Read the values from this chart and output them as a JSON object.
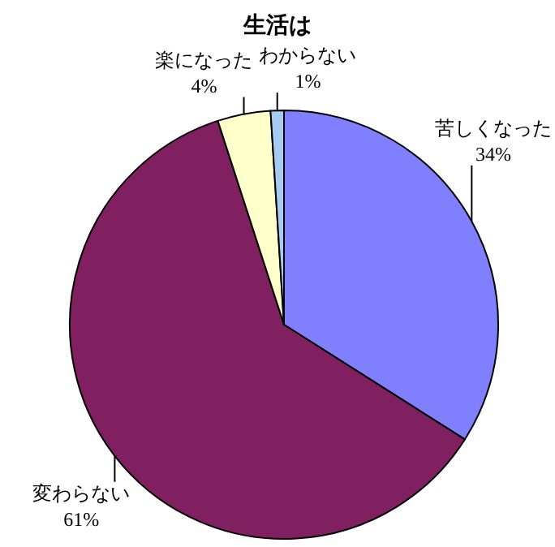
{
  "chart_data": {
    "type": "pie",
    "title": "生活は",
    "categories": [
      "苦しくなった",
      "変わらない",
      "楽になった",
      "わからない"
    ],
    "values": [
      34,
      61,
      4,
      1
    ],
    "colors": [
      "#8080ff",
      "#802060",
      "#ffffcc",
      "#a6caf0"
    ],
    "value_labels": [
      "34%",
      "61%",
      "4%",
      "1%"
    ]
  }
}
